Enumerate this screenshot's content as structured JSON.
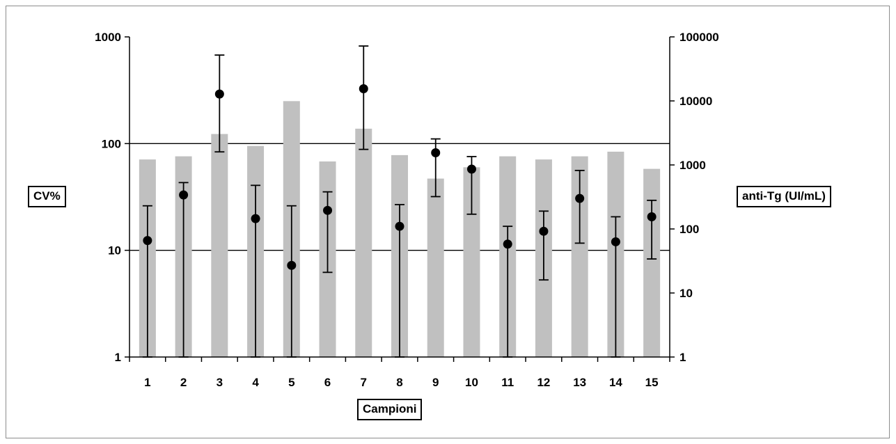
{
  "chart_data": {
    "type": "bar",
    "xlabel": "Campioni",
    "ylabel_left": "CV%",
    "ylabel_right": "anti-Tg (UI/mL)",
    "categories": [
      "1",
      "2",
      "3",
      "4",
      "5",
      "6",
      "7",
      "8",
      "9",
      "10",
      "11",
      "12",
      "13",
      "14",
      "15"
    ],
    "y_left_scale": "log",
    "y_left_lim": [
      1,
      1000
    ],
    "y_left_ticks": [
      "1",
      "10",
      "100",
      "1000"
    ],
    "y_right_scale": "log",
    "y_right_lim": [
      1,
      100000
    ],
    "y_right_ticks": [
      "1",
      "10",
      "100",
      "1000",
      "10000",
      "100000"
    ],
    "grid": "horizontal major lines on left axis",
    "series": [
      {
        "kind": "bar",
        "axis": "left",
        "color": "#c0c0c0",
        "values": [
          71,
          76,
          123,
          95,
          250,
          68,
          138,
          78,
          47,
          60,
          76,
          71,
          76,
          84,
          58
        ]
      },
      {
        "kind": "point-with-error",
        "axis": "right",
        "color": "#000000",
        "values": [
          66,
          340,
          12800,
          145,
          27,
          195,
          15500,
          110,
          1550,
          860,
          58,
          92,
          300,
          63,
          155
        ],
        "error_low": [
          1,
          1,
          1600,
          1,
          1,
          21,
          1750,
          1,
          320,
          170,
          1,
          16,
          60,
          1,
          34
        ],
        "error_high": [
          230,
          530,
          52000,
          480,
          230,
          380,
          72000,
          240,
          2550,
          1350,
          110,
          190,
          820,
          155,
          280
        ]
      }
    ]
  }
}
